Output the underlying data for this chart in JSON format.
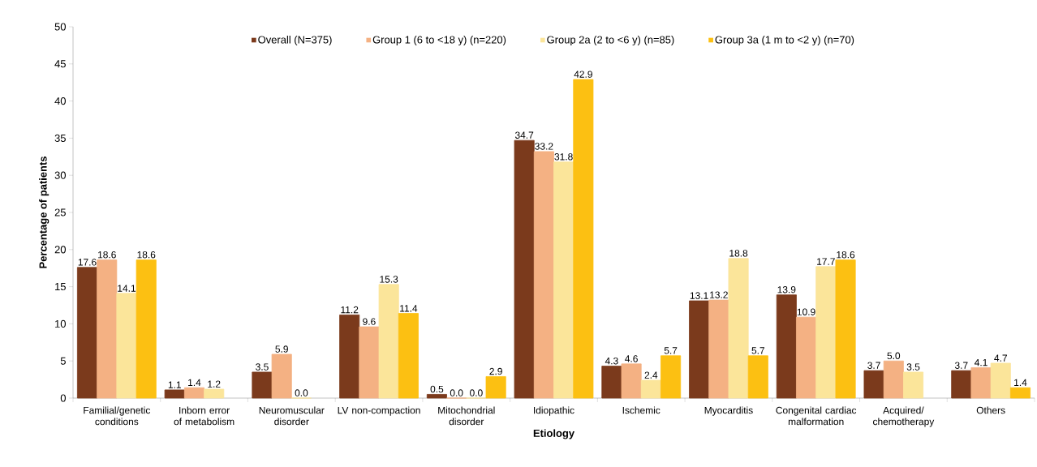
{
  "chart_data": {
    "type": "bar",
    "xlabel": "Etiology",
    "ylabel": "Percentage of patients",
    "categories": [
      "Familial/genetic conditions",
      "Inborn error of metabolism",
      "Neuromuscular disorder",
      "LV non-compaction",
      "Mitochondrial disorder",
      "Idiopathic",
      "Ischemic",
      "Myocarditis",
      "Congenital cardiac malformation",
      "Acquired/ chemotherapy",
      "Others"
    ],
    "ylim": [
      0,
      50
    ],
    "yticks": [
      0,
      5,
      10,
      15,
      20,
      25,
      30,
      35,
      40,
      45,
      50
    ],
    "legend": "top",
    "series": [
      {
        "name": "Overall (N=375)",
        "color": "#7b3a1c",
        "values": [
          17.6,
          1.1,
          3.5,
          11.2,
          0.5,
          34.7,
          4.3,
          13.1,
          13.9,
          3.7,
          3.7
        ],
        "value_labels": [
          "17.6",
          "1.1",
          "3.5",
          "11.2",
          "0.5",
          "34.7",
          "4.3",
          "13.1",
          "13.9",
          "3.7",
          "3.7"
        ]
      },
      {
        "name": "Group 1 (6 to <18 y) (n=220)",
        "color": "#f4b183",
        "values": [
          18.6,
          1.4,
          5.9,
          9.6,
          0.0,
          33.2,
          4.6,
          13.2,
          10.9,
          5.0,
          4.1
        ],
        "value_labels": [
          "18.6",
          "1.4",
          "5.9",
          "9.6",
          "0.0",
          "33.2",
          "4.6",
          "13.2",
          "10.9",
          "5.0",
          "4.1"
        ]
      },
      {
        "name": "Group 2a (2 to <6 y) (n=85)",
        "color": "#fbe59a",
        "values": [
          14.1,
          1.2,
          0.0,
          15.3,
          0.0,
          31.8,
          2.4,
          18.8,
          17.7,
          3.5,
          4.7
        ],
        "value_labels": [
          "14.1",
          "1.2",
          "0.0",
          "15.3",
          "0.0",
          "31.8",
          "2.4",
          "18.8",
          "17.7",
          "3.5",
          "4.7"
        ]
      },
      {
        "name": "Group 3a (1 m to <2 y) (n=70)",
        "color": "#fcc012",
        "values": [
          18.6,
          null,
          null,
          11.4,
          2.9,
          42.9,
          5.7,
          5.7,
          18.6,
          null,
          1.4
        ],
        "value_labels": [
          "18.6",
          null,
          null,
          "11.4",
          "2.9",
          "42.9",
          "5.7",
          "5.7",
          "18.6",
          null,
          "1.4"
        ]
      }
    ]
  }
}
